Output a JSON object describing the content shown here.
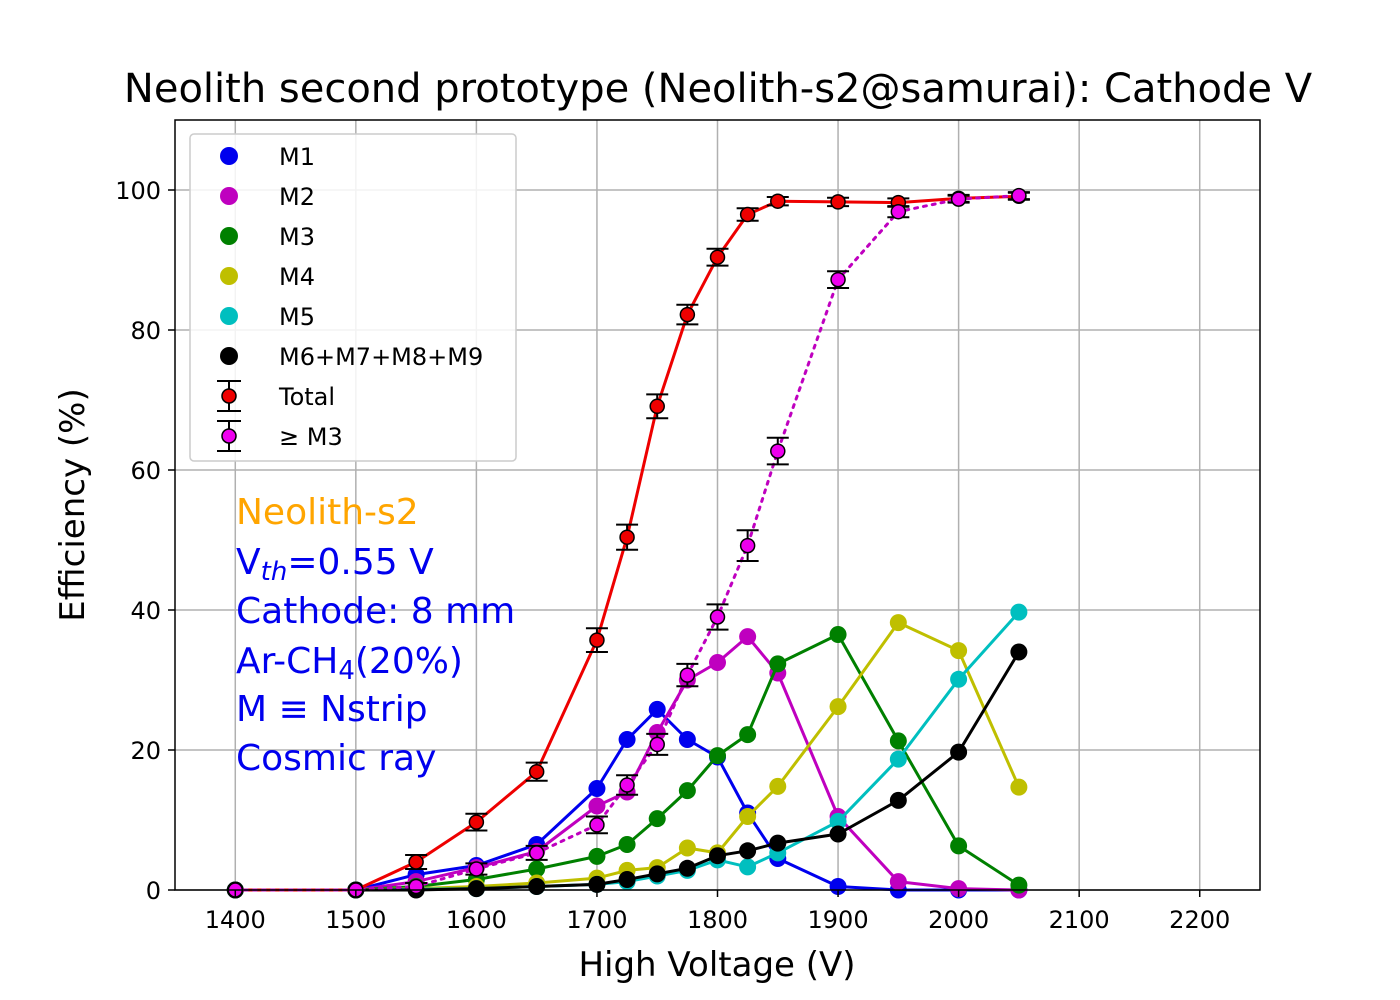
{
  "chart_data": {
    "type": "line",
    "title": "Neolith second prototype (Neolith-s2@samurai): Cathode V",
    "xlabel": "High Voltage (V)",
    "ylabel": "Efficiency (%)",
    "xlim": [
      1350,
      2250
    ],
    "ylim": [
      0,
      110
    ],
    "xticks": [
      1400,
      1500,
      1600,
      1700,
      1800,
      1900,
      2000,
      2100,
      2200
    ],
    "yticks": [
      0,
      20,
      40,
      60,
      80,
      100
    ],
    "grid": true,
    "legend_position": "top-left",
    "x": [
      1400,
      1500,
      1550,
      1600,
      1650,
      1700,
      1725,
      1750,
      1775,
      1800,
      1825,
      1850,
      1900,
      1950,
      2000,
      2050
    ],
    "series": [
      {
        "name": "M1",
        "color": "#0000ee",
        "style": "solid",
        "marker": "dot",
        "values": [
          0,
          0,
          2.2,
          3.5,
          6.5,
          14.5,
          21.5,
          25.8,
          21.5,
          19,
          11,
          4.5,
          0.5,
          0,
          0,
          0
        ]
      },
      {
        "name": "M2",
        "color": "#bf00bf",
        "style": "solid",
        "marker": "dot",
        "values": [
          0,
          0,
          1.2,
          3.2,
          5.5,
          12,
          14,
          22.5,
          30,
          32.5,
          36.2,
          31,
          10.5,
          1.2,
          0.2,
          0
        ]
      },
      {
        "name": "M3",
        "color": "#008000",
        "style": "solid",
        "marker": "dot",
        "values": [
          0,
          0,
          0.5,
          1.5,
          3,
          4.8,
          6.5,
          10.2,
          14.2,
          19.2,
          22.2,
          32.3,
          36.5,
          21.3,
          6.3,
          0.7
        ]
      },
      {
        "name": "M4",
        "color": "#bfbf00",
        "style": "solid",
        "marker": "dot",
        "values": [
          0,
          0,
          0.2,
          0.5,
          1,
          1.7,
          2.8,
          3.2,
          6,
          5.3,
          10.5,
          14.8,
          26.2,
          38.2,
          34.2,
          14.7
        ]
      },
      {
        "name": "M5",
        "color": "#00bfbf",
        "style": "solid",
        "marker": "dot",
        "values": [
          0,
          0,
          0.1,
          0.2,
          0.5,
          0.8,
          1.2,
          2,
          2.8,
          4.3,
          3.3,
          5.3,
          9.8,
          18.7,
          30.1,
          39.7
        ]
      },
      {
        "name": "M6+M7+M8+M9",
        "color": "#000000",
        "style": "solid",
        "marker": "dot",
        "values": [
          0,
          0,
          0,
          0.2,
          0.5,
          0.8,
          1.5,
          2.3,
          3.1,
          4.9,
          5.6,
          6.7,
          8,
          12.8,
          19.7,
          34
        ]
      },
      {
        "name": "Total",
        "color": "#ee0000",
        "style": "solid",
        "marker": "errorbar",
        "markerFill": "#ee0000",
        "values": [
          0,
          0,
          4,
          9.7,
          16.9,
          35.7,
          50.4,
          69.1,
          82.2,
          90.4,
          96.5,
          98.4,
          98.3,
          98.2,
          98.8,
          99.1
        ],
        "errors": [
          0,
          0,
          1,
          1.2,
          1.3,
          1.7,
          1.8,
          1.7,
          1.4,
          1.2,
          0.9,
          0.6,
          0.6,
          0.6,
          0.5,
          0.5
        ]
      },
      {
        "name": " ≥ M3",
        "color": "#bf00bf",
        "style": "dotted",
        "marker": "errorbar",
        "markerFill": "#ee00ee",
        "values": [
          0,
          0,
          0.5,
          3.0,
          5.3,
          9.3,
          15.0,
          20.8,
          30.7,
          39.0,
          49.2,
          62.7,
          87.2,
          96.9,
          98.7,
          99.2
        ],
        "errors": [
          0,
          0,
          0.5,
          0.8,
          1,
          1.2,
          1.4,
          1.5,
          1.6,
          1.8,
          2.2,
          1.9,
          1.2,
          0.8,
          0.5,
          0.5
        ]
      }
    ]
  },
  "annotations": {
    "device": "Neolith-s2",
    "vth_prefix": "V",
    "vth_sub": "th",
    "vth_value": "=0.55 V",
    "cathode": "Cathode: 8 mm",
    "gas_prefix": "Ar-CH",
    "gas_sub": "4",
    "gas_suffix": "(20%)",
    "mdef": "M ≡ Nstrip",
    "source": "Cosmic ray",
    "device_color": "#ffa500",
    "text_color": "#0000ee"
  }
}
